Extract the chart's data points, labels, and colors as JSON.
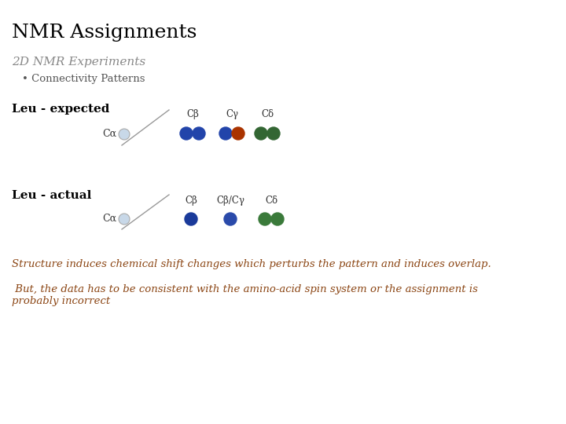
{
  "title": "NMR Assignments",
  "subtitle": "2D NMR Experiments",
  "bullet": "• Connectivity Patterns",
  "leu_expected_label": "Leu - expected",
  "leu_actual_label": "Leu - actual",
  "ca_label": "Cα",
  "cb_label": "Cβ",
  "cg_label": "Cγ",
  "cd_label": "Cδ",
  "cbcg_label": "Cβ/Cγ",
  "text1": "Structure induces chemical shift changes which perturbs the pattern and induces overlap.",
  "text2": " But, the data has to be consistent with the amino-acid spin system or the assignment is\nprobably incorrect",
  "bg_color": "#ffffff",
  "title_color": "#000000",
  "subtitle_color": "#888888",
  "bullet_color": "#555555",
  "leu_label_color": "#000000",
  "text1_color": "#8B4513",
  "text2_color": "#8B4513",
  "ca_dot_color": "#c8d8e8",
  "cb_blue": "#2244aa",
  "cg_red": "#aa3300",
  "cd_green": "#336633",
  "actual_cb_blue": "#1a3a9a",
  "actual_cbcg_blue": "#2a4aaa",
  "actual_cd_green": "#3a7a3a"
}
